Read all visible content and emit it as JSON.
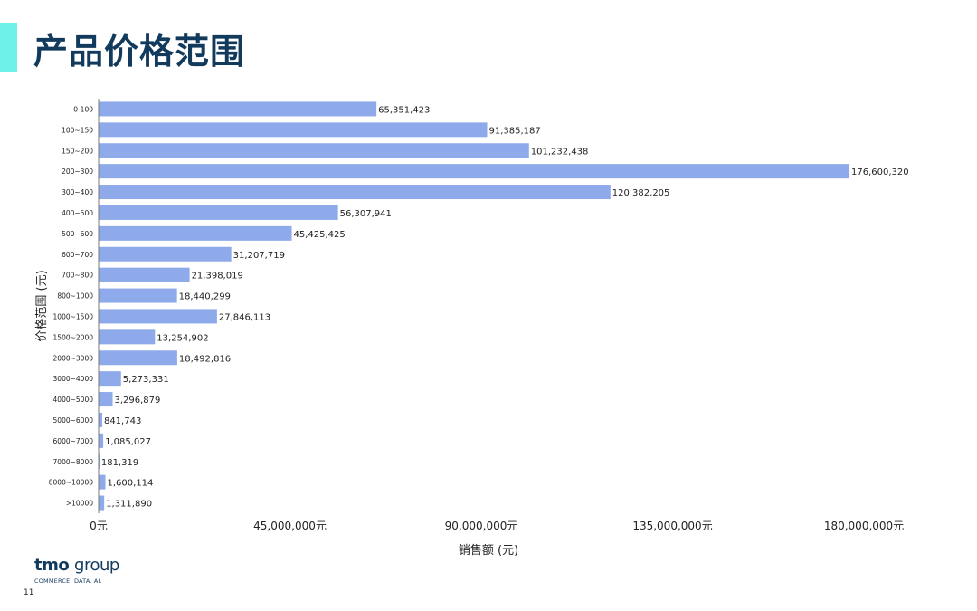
{
  "title": "产品价格范围",
  "logo": {
    "brand": "tmo",
    "group": "group",
    "tagline": "COMMERCE. DATA. AI."
  },
  "page_number": "11",
  "colors": {
    "accent": "#6ef2e8",
    "title": "#123a5c",
    "bar": "#8eaaea",
    "axis": "#7a7a7a"
  },
  "chart_data": {
    "type": "bar",
    "orientation": "horizontal",
    "categories": [
      "0-100",
      "100~150",
      "150~200",
      "200~300",
      "300~400",
      "400~500",
      "500~600",
      "600~700",
      "700~800",
      "800~1000",
      "1000~1500",
      "1500~2000",
      "2000~3000",
      "3000~4000",
      "4000~5000",
      "5000~6000",
      "6000~7000",
      "7000~8000",
      "8000~10000",
      ">10000"
    ],
    "values": [
      65351423,
      91385187,
      101232438,
      176600320,
      120382205,
      56307941,
      45425425,
      31207719,
      21398019,
      18440299,
      27846113,
      13254902,
      18492816,
      5273331,
      3296879,
      841743,
      1085027,
      181319,
      1600114,
      1311890
    ],
    "value_labels": [
      "65,351,423",
      "91,385,187",
      "101,232,438",
      "176,600,320",
      "120,382,205",
      "56,307,941",
      "45,425,425",
      "31,207,719",
      "21,398,019",
      "18,440,299",
      "27,846,113",
      "13,254,902",
      "18,492,816",
      "5,273,331",
      "3,296,879",
      "841,743",
      "1,085,027",
      "181,319",
      "1,600,114",
      "1,311,890"
    ],
    "xlabel": "销售额 (元)",
    "ylabel": "价格范围 (元)",
    "xlim": [
      0,
      180000000
    ],
    "xticks": [
      0,
      45000000,
      90000000,
      135000000,
      180000000
    ],
    "xtick_labels": [
      "0元",
      "45,000,000元",
      "90,000,000元",
      "135,000,000元",
      "180,000,000元"
    ],
    "grid": false,
    "legend": "none"
  }
}
